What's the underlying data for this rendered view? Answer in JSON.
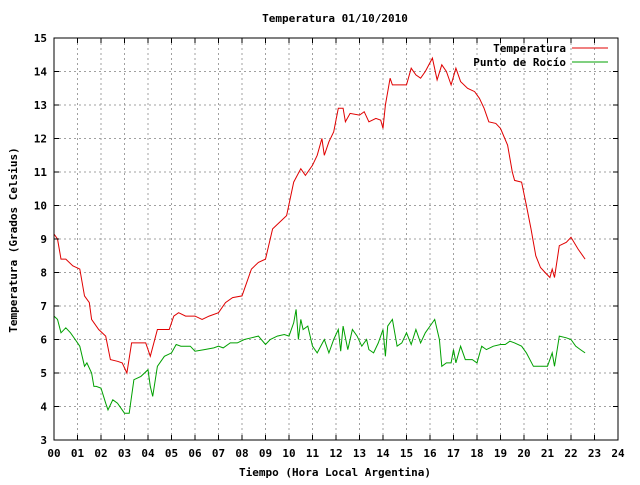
{
  "chart_data": {
    "type": "line",
    "title": "Temperatura 01/10/2010",
    "xlabel": "Tiempo (Hora Local Argentina)",
    "ylabel": "Temperatura (Grados Celsius)",
    "xlim": [
      0,
      24
    ],
    "ylim": [
      3,
      15
    ],
    "x_ticks": [
      "00",
      "01",
      "02",
      "03",
      "04",
      "05",
      "06",
      "07",
      "08",
      "09",
      "10",
      "11",
      "12",
      "13",
      "14",
      "15",
      "16",
      "17",
      "18",
      "19",
      "20",
      "21",
      "22",
      "23",
      "24"
    ],
    "y_ticks": [
      3,
      4,
      5,
      6,
      7,
      8,
      9,
      10,
      11,
      12,
      13,
      14,
      15
    ],
    "grid": true,
    "legend_position": "top-right",
    "series": [
      {
        "name": "Temperatura",
        "color": "#e00000",
        "points": [
          [
            0.0,
            9.15
          ],
          [
            0.15,
            9.0
          ],
          [
            0.3,
            8.4
          ],
          [
            0.5,
            8.4
          ],
          [
            0.8,
            8.2
          ],
          [
            1.1,
            8.1
          ],
          [
            1.3,
            7.3
          ],
          [
            1.5,
            7.1
          ],
          [
            1.6,
            6.6
          ],
          [
            1.9,
            6.3
          ],
          [
            2.2,
            6.1
          ],
          [
            2.4,
            5.4
          ],
          [
            2.7,
            5.35
          ],
          [
            2.9,
            5.3
          ],
          [
            3.1,
            5.0
          ],
          [
            3.3,
            5.9
          ],
          [
            3.6,
            5.9
          ],
          [
            3.9,
            5.9
          ],
          [
            4.1,
            5.5
          ],
          [
            4.4,
            6.3
          ],
          [
            4.9,
            6.3
          ],
          [
            5.1,
            6.7
          ],
          [
            5.3,
            6.8
          ],
          [
            5.6,
            6.7
          ],
          [
            6.0,
            6.7
          ],
          [
            6.3,
            6.6
          ],
          [
            6.6,
            6.7
          ],
          [
            7.0,
            6.8
          ],
          [
            7.3,
            7.1
          ],
          [
            7.6,
            7.25
          ],
          [
            8.0,
            7.3
          ],
          [
            8.2,
            7.7
          ],
          [
            8.4,
            8.1
          ],
          [
            8.7,
            8.3
          ],
          [
            9.0,
            8.4
          ],
          [
            9.3,
            9.3
          ],
          [
            9.6,
            9.5
          ],
          [
            9.9,
            9.7
          ],
          [
            10.2,
            10.7
          ],
          [
            10.5,
            11.1
          ],
          [
            10.7,
            10.9
          ],
          [
            11.0,
            11.2
          ],
          [
            11.2,
            11.5
          ],
          [
            11.4,
            12.0
          ],
          [
            11.5,
            11.5
          ],
          [
            11.7,
            11.9
          ],
          [
            11.9,
            12.2
          ],
          [
            12.1,
            12.9
          ],
          [
            12.3,
            12.9
          ],
          [
            12.4,
            12.5
          ],
          [
            12.6,
            12.75
          ],
          [
            13.0,
            12.7
          ],
          [
            13.2,
            12.8
          ],
          [
            13.4,
            12.5
          ],
          [
            13.7,
            12.6
          ],
          [
            13.9,
            12.55
          ],
          [
            14.0,
            12.3
          ],
          [
            14.1,
            13.0
          ],
          [
            14.3,
            13.8
          ],
          [
            14.4,
            13.6
          ],
          [
            14.7,
            13.6
          ],
          [
            15.0,
            13.6
          ],
          [
            15.2,
            14.1
          ],
          [
            15.4,
            13.9
          ],
          [
            15.6,
            13.8
          ],
          [
            15.8,
            14.0
          ],
          [
            16.1,
            14.4
          ],
          [
            16.3,
            13.75
          ],
          [
            16.5,
            14.2
          ],
          [
            16.7,
            14.0
          ],
          [
            16.9,
            13.6
          ],
          [
            17.1,
            14.1
          ],
          [
            17.3,
            13.7
          ],
          [
            17.6,
            13.5
          ],
          [
            17.9,
            13.4
          ],
          [
            18.1,
            13.2
          ],
          [
            18.3,
            12.9
          ],
          [
            18.5,
            12.5
          ],
          [
            18.8,
            12.45
          ],
          [
            19.0,
            12.3
          ],
          [
            19.3,
            11.8
          ],
          [
            19.5,
            11.0
          ],
          [
            19.6,
            10.75
          ],
          [
            19.9,
            10.7
          ],
          [
            20.1,
            10.0
          ],
          [
            20.3,
            9.3
          ],
          [
            20.5,
            8.5
          ],
          [
            20.7,
            8.15
          ],
          [
            20.9,
            8.0
          ],
          [
            21.1,
            7.85
          ],
          [
            21.2,
            8.1
          ],
          [
            21.3,
            7.85
          ],
          [
            21.5,
            8.8
          ],
          [
            21.8,
            8.9
          ],
          [
            22.0,
            9.05
          ],
          [
            22.3,
            8.7
          ],
          [
            22.6,
            8.4
          ]
        ]
      },
      {
        "name": "Punto de Rocío",
        "color": "#00a000",
        "points": [
          [
            0.0,
            6.7
          ],
          [
            0.15,
            6.6
          ],
          [
            0.3,
            6.2
          ],
          [
            0.5,
            6.35
          ],
          [
            0.7,
            6.2
          ],
          [
            0.9,
            6.0
          ],
          [
            1.1,
            5.8
          ],
          [
            1.3,
            5.2
          ],
          [
            1.4,
            5.3
          ],
          [
            1.6,
            5.0
          ],
          [
            1.7,
            4.6
          ],
          [
            1.8,
            4.6
          ],
          [
            2.0,
            4.55
          ],
          [
            2.2,
            4.1
          ],
          [
            2.3,
            3.9
          ],
          [
            2.5,
            4.2
          ],
          [
            2.7,
            4.1
          ],
          [
            3.0,
            3.8
          ],
          [
            3.2,
            3.8
          ],
          [
            3.4,
            4.8
          ],
          [
            3.7,
            4.9
          ],
          [
            4.0,
            5.1
          ],
          [
            4.1,
            4.6
          ],
          [
            4.2,
            4.3
          ],
          [
            4.4,
            5.2
          ],
          [
            4.7,
            5.5
          ],
          [
            5.0,
            5.6
          ],
          [
            5.2,
            5.85
          ],
          [
            5.4,
            5.8
          ],
          [
            5.8,
            5.8
          ],
          [
            6.0,
            5.65
          ],
          [
            6.4,
            5.7
          ],
          [
            6.8,
            5.75
          ],
          [
            7.0,
            5.8
          ],
          [
            7.2,
            5.75
          ],
          [
            7.5,
            5.9
          ],
          [
            7.8,
            5.9
          ],
          [
            8.1,
            6.0
          ],
          [
            8.4,
            6.05
          ],
          [
            8.7,
            6.1
          ],
          [
            9.0,
            5.85
          ],
          [
            9.2,
            6.0
          ],
          [
            9.5,
            6.1
          ],
          [
            9.8,
            6.15
          ],
          [
            10.0,
            6.1
          ],
          [
            10.2,
            6.5
          ],
          [
            10.3,
            6.9
          ],
          [
            10.4,
            6.0
          ],
          [
            10.5,
            6.6
          ],
          [
            10.6,
            6.3
          ],
          [
            10.8,
            6.4
          ],
          [
            11.0,
            5.8
          ],
          [
            11.2,
            5.6
          ],
          [
            11.5,
            6.0
          ],
          [
            11.7,
            5.6
          ],
          [
            11.9,
            6.0
          ],
          [
            12.1,
            6.3
          ],
          [
            12.2,
            5.65
          ],
          [
            12.3,
            6.4
          ],
          [
            12.5,
            5.7
          ],
          [
            12.7,
            6.3
          ],
          [
            12.9,
            6.1
          ],
          [
            13.1,
            5.8
          ],
          [
            13.3,
            6.0
          ],
          [
            13.4,
            5.7
          ],
          [
            13.6,
            5.6
          ],
          [
            13.8,
            5.9
          ],
          [
            14.0,
            6.3
          ],
          [
            14.1,
            5.5
          ],
          [
            14.2,
            6.4
          ],
          [
            14.4,
            6.6
          ],
          [
            14.6,
            5.8
          ],
          [
            14.8,
            5.9
          ],
          [
            15.0,
            6.2
          ],
          [
            15.2,
            5.85
          ],
          [
            15.4,
            6.3
          ],
          [
            15.6,
            5.9
          ],
          [
            15.8,
            6.2
          ],
          [
            16.0,
            6.4
          ],
          [
            16.2,
            6.6
          ],
          [
            16.4,
            6.0
          ],
          [
            16.5,
            5.2
          ],
          [
            16.7,
            5.3
          ],
          [
            16.9,
            5.3
          ],
          [
            17.0,
            5.7
          ],
          [
            17.1,
            5.3
          ],
          [
            17.3,
            5.8
          ],
          [
            17.5,
            5.4
          ],
          [
            17.8,
            5.4
          ],
          [
            18.0,
            5.3
          ],
          [
            18.2,
            5.8
          ],
          [
            18.4,
            5.7
          ],
          [
            18.7,
            5.8
          ],
          [
            19.0,
            5.85
          ],
          [
            19.2,
            5.85
          ],
          [
            19.4,
            5.95
          ],
          [
            19.6,
            5.9
          ],
          [
            19.9,
            5.8
          ],
          [
            20.1,
            5.6
          ],
          [
            20.4,
            5.2
          ],
          [
            20.7,
            5.2
          ],
          [
            21.0,
            5.2
          ],
          [
            21.2,
            5.6
          ],
          [
            21.3,
            5.2
          ],
          [
            21.5,
            6.1
          ],
          [
            21.8,
            6.05
          ],
          [
            22.0,
            6.0
          ],
          [
            22.2,
            5.8
          ],
          [
            22.4,
            5.7
          ],
          [
            22.6,
            5.6
          ]
        ]
      }
    ]
  }
}
